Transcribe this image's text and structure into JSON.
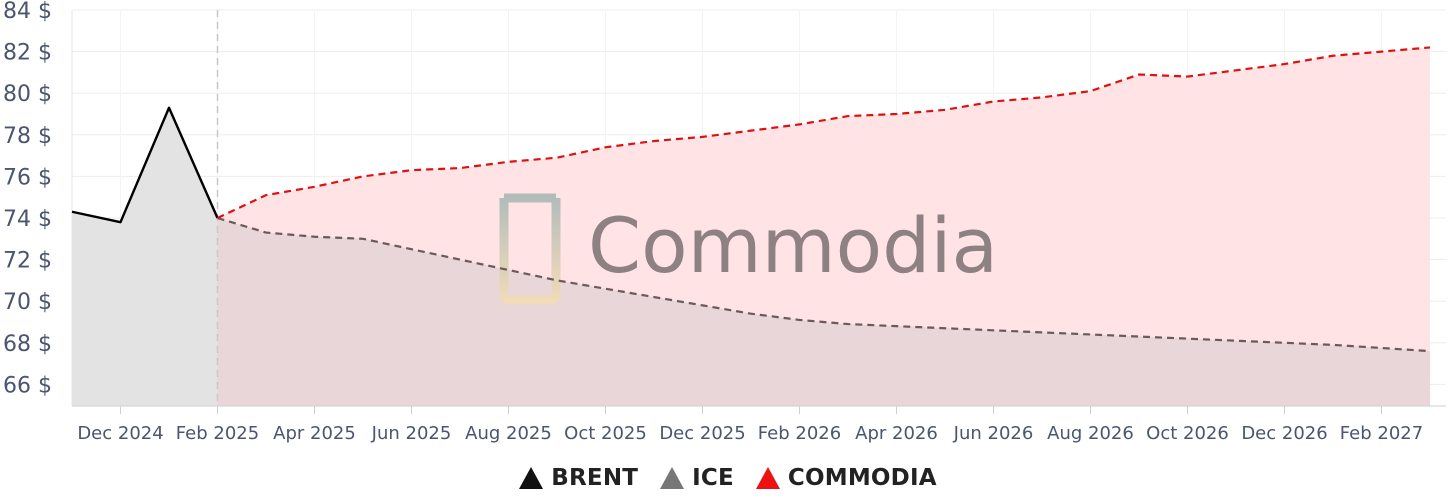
{
  "chart_data": {
    "type": "line",
    "title": "",
    "xlabel": "",
    "ylabel": "",
    "x_ticks": [
      "Dec 2024",
      "Feb 2025",
      "Apr 2025",
      "Jun 2025",
      "Aug 2025",
      "Oct 2025",
      "Dec 2025",
      "Feb 2026",
      "Apr 2026",
      "Jun 2026",
      "Aug 2026",
      "Oct 2026",
      "Dec 2026",
      "Feb 2027"
    ],
    "y_ticks": [
      "66 $",
      "68 $",
      "70 $",
      "72 $",
      "74 $",
      "76 $",
      "78 $",
      "80 $",
      "82 $",
      "84 $"
    ],
    "ylim": [
      65,
      84
    ],
    "xlim": [
      "2024-11",
      "2027-03"
    ],
    "divider_at": "2025-02",
    "grid": true,
    "legend_position": "bottom-center",
    "series": [
      {
        "name": "BRENT",
        "color": "#000000",
        "style": "solid",
        "fill": "#e3e3e3",
        "x": [
          "2024-11",
          "2024-12",
          "2025-01",
          "2025-02"
        ],
        "values": [
          74.3,
          73.8,
          79.3,
          74.0
        ]
      },
      {
        "name": "ICE",
        "color": "#6b5a5a",
        "style": "dashed",
        "fill": "#e8d6d8",
        "x": [
          "2025-02",
          "2025-03",
          "2025-04",
          "2025-05",
          "2025-06",
          "2025-07",
          "2025-08",
          "2025-09",
          "2025-10",
          "2025-11",
          "2025-12",
          "2026-01",
          "2026-02",
          "2026-03",
          "2026-04",
          "2026-05",
          "2026-06",
          "2026-07",
          "2026-08",
          "2026-09",
          "2026-10",
          "2026-11",
          "2026-12",
          "2027-01",
          "2027-02",
          "2027-03"
        ],
        "values": [
          74.0,
          73.3,
          73.1,
          73.0,
          72.5,
          72.0,
          71.5,
          71.0,
          70.6,
          70.2,
          69.8,
          69.4,
          69.1,
          68.9,
          68.8,
          68.7,
          68.6,
          68.5,
          68.4,
          68.3,
          68.2,
          68.1,
          68.0,
          67.9,
          67.75,
          67.6
        ]
      },
      {
        "name": "COMMODIA",
        "color": "#dd1111",
        "style": "dashed",
        "fill": "#ffe3e5",
        "x": [
          "2025-02",
          "2025-03",
          "2025-04",
          "2025-05",
          "2025-06",
          "2025-07",
          "2025-08",
          "2025-09",
          "2025-10",
          "2025-11",
          "2025-12",
          "2026-01",
          "2026-02",
          "2026-03",
          "2026-04",
          "2026-05",
          "2026-06",
          "2026-07",
          "2026-08",
          "2026-09",
          "2026-10",
          "2026-11",
          "2026-12",
          "2027-01",
          "2027-02",
          "2027-03"
        ],
        "values": [
          74.0,
          75.1,
          75.5,
          76.0,
          76.3,
          76.4,
          76.7,
          76.9,
          77.4,
          77.7,
          77.9,
          78.2,
          78.5,
          78.9,
          79.0,
          79.2,
          79.6,
          79.8,
          80.1,
          80.9,
          80.8,
          81.1,
          81.4,
          81.8,
          82.0,
          82.2
        ]
      }
    ]
  },
  "watermark": {
    "text": "Commodia"
  },
  "legend": [
    {
      "label": "BRENT",
      "color": "#111111"
    },
    {
      "label": "ICE",
      "color": "#777777"
    },
    {
      "label": "COMMODIA",
      "color": "#ee1111"
    }
  ]
}
